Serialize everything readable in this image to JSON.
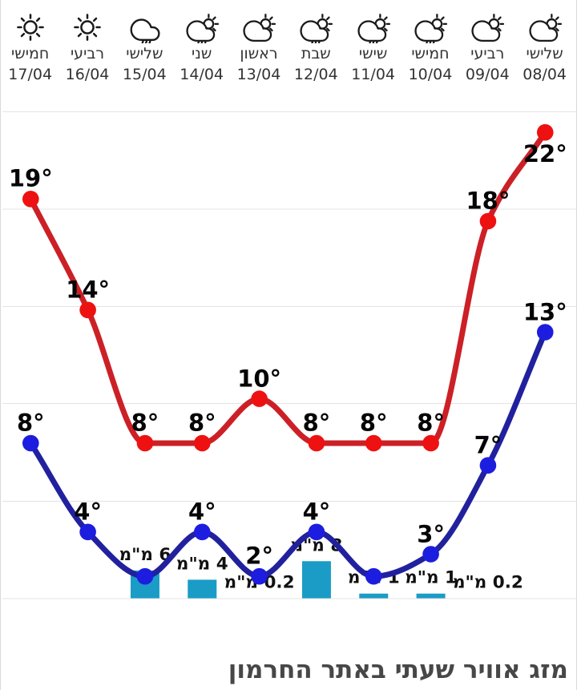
{
  "widget": {
    "title": "מזג אוויר שעתי באתר החרמון"
  },
  "header": {
    "days": [
      {
        "name": "חמישי",
        "date": "17/04",
        "icon": "sunny"
      },
      {
        "name": "רביעי",
        "date": "16/04",
        "icon": "sunny"
      },
      {
        "name": "שלישי",
        "date": "15/04",
        "icon": "rain"
      },
      {
        "name": "שני",
        "date": "14/04",
        "icon": "rain-sun"
      },
      {
        "name": "ראשון",
        "date": "13/04",
        "icon": "cloud-sun"
      },
      {
        "name": "שבת",
        "date": "12/04",
        "icon": "rain-sun"
      },
      {
        "name": "שישי",
        "date": "11/04",
        "icon": "rain-sun"
      },
      {
        "name": "חמישי",
        "date": "10/04",
        "icon": "rain-sun"
      },
      {
        "name": "רביעי",
        "date": "09/04",
        "icon": "cloud-sun"
      },
      {
        "name": "שלישי",
        "date": "08/04",
        "icon": "cloud-sun"
      }
    ]
  },
  "chart_data": {
    "type": "line",
    "direction": "rtl",
    "title": "מזג אוויר שעתי באתר החרמון",
    "categories": [
      "17/04",
      "16/04",
      "15/04",
      "14/04",
      "13/04",
      "12/04",
      "11/04",
      "10/04",
      "09/04",
      "08/04"
    ],
    "series": [
      {
        "name": "high_temp_c",
        "color": "#cc2027",
        "dot_color": "#ee1111",
        "values": [
          19,
          14,
          8,
          8,
          10,
          8,
          8,
          8,
          18,
          22
        ],
        "labels": [
          "19°",
          "14°",
          "8°",
          "8°",
          "10°",
          "8°",
          "8°",
          "8°",
          "18°",
          "22°"
        ]
      },
      {
        "name": "low_temp_c",
        "color": "#21219f",
        "dot_color": "#1d1de0",
        "values": [
          8,
          4,
          2,
          4,
          2,
          4,
          2,
          3,
          7,
          13
        ],
        "labels": [
          "8°",
          "4°",
          "",
          "4°",
          "2°",
          "4°",
          "",
          "3°",
          "7°",
          "13°"
        ]
      }
    ],
    "bars": {
      "name": "precipitation_mm",
      "color": "#1a9cc6",
      "values": [
        null,
        null,
        6,
        4,
        0.2,
        8,
        1,
        1,
        0.2,
        null
      ],
      "labels": [
        "",
        "",
        "6 מ\"מ",
        "4 מ\"מ",
        "0.2 מ\"מ",
        "8 מ\"מ",
        "1 מ\"מ",
        "1 מ\"מ",
        "0.2 מ\"מ",
        ""
      ]
    },
    "y_axis": {
      "unit": "°C",
      "baseline_value": 8,
      "gridlines": "horizontal, unlabeled"
    },
    "legend": "none"
  }
}
